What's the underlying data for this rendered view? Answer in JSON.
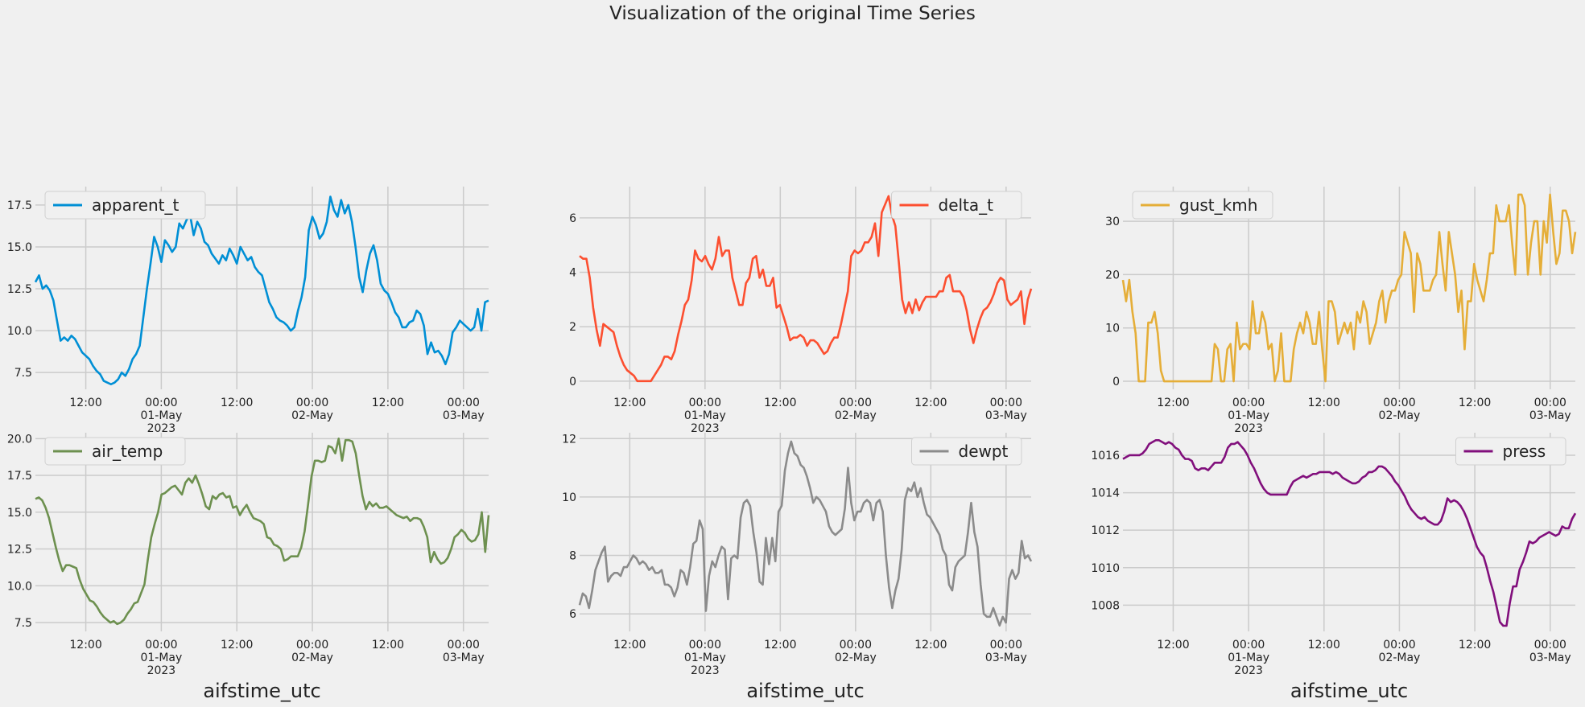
{
  "figure": {
    "title": "Visualization of the original Time Series",
    "xlabel": "aifstime_utc"
  },
  "chart_data": [
    {
      "type": "line",
      "series": [
        {
          "name": "apparent_t",
          "color": "#008fd5",
          "values": [
            12.9,
            13.3,
            12.5,
            12.7,
            12.4,
            11.8,
            10.6,
            9.4,
            9.6,
            9.4,
            9.7,
            9.5,
            9.1,
            8.7,
            8.5,
            8.3,
            7.9,
            7.6,
            7.4,
            7.0,
            6.9,
            6.8,
            6.9,
            7.1,
            7.5,
            7.3,
            7.7,
            8.3,
            8.6,
            9.1,
            10.8,
            12.5,
            14.0,
            15.6,
            15.0,
            14.1,
            15.4,
            15.1,
            14.7,
            15.0,
            16.4,
            16.1,
            16.6,
            16.9,
            15.7,
            16.5,
            16.1,
            15.3,
            15.1,
            14.6,
            14.3,
            14.0,
            14.5,
            14.2,
            14.9,
            14.5,
            14.0,
            15.0,
            14.6,
            14.2,
            14.4,
            13.8,
            13.5,
            13.3,
            12.5,
            11.7,
            11.3,
            10.8,
            10.6,
            10.5,
            10.3,
            10.0,
            10.2,
            11.2,
            12.0,
            13.2,
            16.0,
            16.8,
            16.3,
            15.5,
            15.8,
            16.5,
            18.0,
            17.2,
            16.8,
            17.8,
            17.0,
            17.5,
            16.5,
            15.0,
            13.2,
            12.3,
            13.6,
            14.6,
            15.1,
            14.2,
            12.8,
            12.4,
            12.2,
            11.7,
            11.1,
            10.8,
            10.2,
            10.2,
            10.5,
            10.6,
            11.2,
            11.0,
            10.3,
            8.6,
            9.3,
            8.7,
            8.8,
            8.5,
            8.0,
            8.6,
            9.9,
            10.2,
            10.6,
            10.4,
            10.2,
            10.0,
            10.2,
            11.3,
            10.0,
            11.7,
            11.8
          ]
        }
      ],
      "x_range": [
        "2023-04-30 04:00",
        "2023-05-03 04:00"
      ],
      "x_ticks": [
        "12:00",
        "00:00\n01-May\n2023",
        "12:00",
        "00:00\n02-May",
        "12:00",
        "00:00\n03-May"
      ],
      "show_x_ticks": true,
      "ylim": [
        6.5,
        18.6
      ],
      "y_ticks": [
        "7.5",
        "10.0",
        "12.5",
        "15.0",
        "17.5"
      ],
      "legend_position": "upper left",
      "grid": true
    },
    {
      "type": "line",
      "series": [
        {
          "name": "delta_t",
          "color": "#fc4f30",
          "values": [
            4.6,
            4.5,
            4.5,
            3.8,
            2.7,
            1.9,
            1.3,
            2.1,
            2.0,
            1.9,
            1.8,
            1.3,
            0.9,
            0.6,
            0.4,
            0.3,
            0.2,
            0.0,
            0.0,
            0.0,
            0.0,
            0.0,
            0.2,
            0.4,
            0.6,
            0.9,
            0.9,
            0.8,
            1.1,
            1.7,
            2.2,
            2.8,
            3.0,
            3.7,
            4.8,
            4.5,
            4.4,
            4.6,
            4.3,
            4.1,
            4.5,
            5.3,
            4.6,
            4.8,
            4.8,
            3.8,
            3.3,
            2.8,
            2.8,
            3.6,
            3.8,
            4.5,
            4.6,
            3.8,
            4.1,
            3.5,
            3.5,
            3.8,
            2.7,
            2.8,
            2.4,
            2.0,
            1.5,
            1.6,
            1.6,
            1.7,
            1.6,
            1.3,
            1.5,
            1.5,
            1.4,
            1.2,
            1.0,
            1.1,
            1.4,
            1.6,
            1.6,
            2.1,
            2.7,
            3.3,
            4.6,
            4.8,
            4.7,
            4.8,
            5.1,
            5.1,
            5.3,
            5.8,
            4.6,
            6.2,
            6.5,
            6.8,
            6.1,
            5.7,
            4.4,
            3.0,
            2.5,
            2.9,
            2.5,
            3.0,
            2.6,
            2.9,
            3.1,
            3.1,
            3.1,
            3.1,
            3.3,
            3.3,
            3.8,
            3.9,
            3.3,
            3.3,
            3.3,
            3.1,
            2.6,
            1.9,
            1.4,
            1.9,
            2.3,
            2.6,
            2.7,
            2.9,
            3.2,
            3.6,
            3.8,
            3.7,
            3.0,
            2.8,
            2.9,
            3.0,
            3.3,
            2.1,
            3.0,
            3.4
          ]
        }
      ],
      "x_range": [
        "2023-04-30 04:00",
        "2023-05-03 04:00"
      ],
      "x_ticks": [
        "12:00",
        "00:00\n01-May\n2023",
        "12:00",
        "00:00\n02-May",
        "12:00",
        "00:00\n03-May"
      ],
      "show_x_ticks": true,
      "ylim": [
        -0.3,
        7.15
      ],
      "y_ticks": [
        "0",
        "2",
        "4",
        "6"
      ],
      "legend_position": "upper right",
      "grid": true
    },
    {
      "type": "line",
      "series": [
        {
          "name": "gust_kmh",
          "color": "#e5ae38",
          "values": [
            19,
            15,
            19,
            13,
            9,
            0,
            0,
            0,
            11,
            11,
            13,
            9,
            2,
            0,
            0,
            0,
            0,
            0,
            0,
            0,
            0,
            0,
            0,
            0,
            0,
            0,
            0,
            0,
            0,
            7,
            6,
            0,
            0,
            6,
            7,
            0,
            11,
            6,
            7,
            7,
            6,
            15,
            9,
            9,
            13,
            11,
            6,
            7,
            0,
            2,
            9,
            0,
            0,
            0,
            6,
            9,
            11,
            9,
            13,
            11,
            7,
            7,
            13,
            6,
            0,
            15,
            15,
            13,
            7,
            9,
            11,
            9,
            11,
            6,
            13,
            11,
            15,
            13,
            7,
            9,
            11,
            15,
            17,
            11,
            15,
            17,
            17,
            19,
            20,
            28,
            26,
            24,
            13,
            24,
            22,
            17,
            17,
            17,
            19,
            20,
            28,
            22,
            17,
            28,
            24,
            20,
            13,
            17,
            6,
            15,
            15,
            22,
            19,
            17,
            15,
            19,
            24,
            24,
            33,
            30,
            30,
            30,
            33,
            26,
            20,
            35,
            35,
            33,
            20,
            26,
            30,
            30,
            20,
            30,
            26,
            35,
            28,
            22,
            24,
            32,
            32,
            30,
            24,
            28
          ]
        }
      ],
      "x_range": [
        "2023-04-30 04:00",
        "2023-05-03 04:00"
      ],
      "x_ticks": [
        "12:00",
        "00:00\n01-May\n2023",
        "12:00",
        "00:00\n02-May",
        "12:00",
        "00:00\n03-May"
      ],
      "show_x_ticks": true,
      "ylim": [
        -1.5,
        36.5
      ],
      "y_ticks": [
        "0",
        "10",
        "20",
        "30"
      ],
      "legend_position": "upper left",
      "grid": true
    },
    {
      "type": "line",
      "series": [
        {
          "name": "air_temp",
          "color": "#6d904f",
          "values": [
            15.9,
            16.0,
            15.8,
            15.3,
            14.6,
            13.6,
            12.6,
            11.7,
            11.0,
            11.4,
            11.4,
            11.3,
            11.2,
            10.4,
            9.8,
            9.4,
            9.0,
            8.9,
            8.6,
            8.2,
            7.9,
            7.7,
            7.5,
            7.6,
            7.4,
            7.5,
            7.7,
            8.1,
            8.4,
            8.8,
            8.9,
            9.5,
            10.1,
            11.8,
            13.3,
            14.2,
            15.0,
            16.2,
            16.3,
            16.5,
            16.7,
            16.8,
            16.5,
            16.2,
            17.0,
            17.3,
            17.0,
            17.5,
            16.9,
            16.2,
            15.4,
            15.2,
            16.1,
            15.9,
            16.2,
            16.3,
            16.0,
            16.1,
            15.3,
            15.4,
            14.8,
            15.2,
            15.5,
            15.0,
            14.6,
            14.5,
            14.4,
            14.2,
            13.3,
            13.2,
            12.8,
            12.7,
            12.5,
            11.7,
            11.8,
            12.0,
            12.0,
            12.0,
            12.6,
            13.7,
            15.5,
            17.4,
            18.5,
            18.5,
            18.4,
            18.5,
            19.5,
            19.4,
            19.0,
            20.0,
            18.5,
            19.9,
            19.9,
            19.8,
            19.0,
            17.5,
            16.1,
            15.2,
            15.7,
            15.4,
            15.6,
            15.3,
            15.3,
            15.4,
            15.2,
            15.0,
            14.8,
            14.7,
            14.6,
            14.7,
            14.4,
            14.6,
            14.6,
            14.5,
            14.0,
            13.3,
            11.6,
            12.3,
            11.8,
            11.5,
            11.6,
            11.9,
            12.5,
            13.3,
            13.5,
            13.8,
            13.6,
            13.2,
            13.0,
            13.1,
            13.5,
            15.0,
            12.3,
            14.8
          ]
        }
      ],
      "x_range": [
        "2023-04-30 04:00",
        "2023-05-03 04:00"
      ],
      "x_ticks": [
        "12:00",
        "00:00\n01-May\n2023",
        "12:00",
        "00:00\n02-May",
        "12:00",
        "00:00\n03-May"
      ],
      "show_x_ticks": true,
      "ylim": [
        6.9,
        20.4
      ],
      "y_ticks": [
        "7.5",
        "10.0",
        "12.5",
        "15.0",
        "17.5",
        "20.0"
      ],
      "legend_position": "upper left",
      "grid": true
    },
    {
      "type": "line",
      "series": [
        {
          "name": "dewpt",
          "color": "#8b8b8b",
          "values": [
            6.3,
            6.7,
            6.6,
            6.2,
            6.8,
            7.5,
            7.8,
            8.1,
            8.3,
            7.1,
            7.3,
            7.4,
            7.4,
            7.3,
            7.6,
            7.6,
            7.8,
            8.0,
            7.9,
            7.7,
            7.8,
            7.7,
            7.5,
            7.6,
            7.4,
            7.4,
            7.5,
            7.0,
            7.0,
            6.9,
            6.6,
            6.9,
            7.5,
            7.4,
            7.0,
            7.6,
            8.4,
            8.5,
            9.2,
            8.9,
            6.1,
            7.3,
            7.8,
            7.6,
            8.0,
            8.3,
            8.2,
            6.5,
            7.9,
            8.0,
            7.9,
            9.3,
            9.8,
            9.9,
            9.7,
            8.8,
            8.1,
            7.1,
            7.0,
            8.6,
            7.7,
            8.6,
            7.8,
            9.5,
            9.7,
            10.9,
            11.5,
            11.9,
            11.5,
            11.4,
            11.1,
            11.0,
            10.7,
            10.3,
            9.8,
            10.0,
            9.9,
            9.7,
            9.5,
            9.0,
            8.8,
            8.7,
            8.8,
            8.9,
            9.6,
            11.0,
            9.8,
            9.2,
            9.5,
            9.5,
            9.8,
            9.9,
            9.8,
            9.2,
            9.8,
            9.9,
            9.5,
            8.0,
            6.9,
            6.2,
            6.8,
            7.2,
            8.2,
            9.9,
            10.3,
            10.2,
            10.5,
            10.0,
            10.3,
            9.8,
            9.4,
            9.3,
            9.1,
            8.9,
            8.7,
            8.2,
            8.0,
            7.0,
            6.8,
            7.6,
            7.8,
            7.9,
            8.0,
            8.8,
            9.8,
            8.8,
            8.3,
            7.0,
            6.0,
            5.9,
            5.9,
            6.2,
            5.9,
            5.6,
            5.9,
            5.7,
            7.2,
            7.5,
            7.2,
            7.4,
            8.5,
            7.9,
            8.0,
            7.8
          ]
        }
      ],
      "x_range": [
        "2023-04-30 04:00",
        "2023-05-03 04:00"
      ],
      "x_ticks": [
        "12:00",
        "00:00\n01-May\n2023",
        "12:00",
        "00:00\n02-May",
        "12:00",
        "00:00\n03-May"
      ],
      "show_x_ticks": true,
      "ylim": [
        5.4,
        12.2
      ],
      "y_ticks": [
        "6",
        "8",
        "10",
        "12"
      ],
      "legend_position": "upper right",
      "grid": true
    },
    {
      "type": "line",
      "series": [
        {
          "name": "press",
          "color": "#810f7c",
          "values": [
            1015.8,
            1015.9,
            1016.0,
            1016.0,
            1016.0,
            1016.0,
            1016.1,
            1016.3,
            1016.6,
            1016.7,
            1016.8,
            1016.8,
            1016.7,
            1016.6,
            1016.7,
            1016.6,
            1016.4,
            1016.3,
            1016.0,
            1015.8,
            1015.8,
            1015.7,
            1015.3,
            1015.2,
            1015.3,
            1015.3,
            1015.2,
            1015.4,
            1015.6,
            1015.6,
            1015.6,
            1015.9,
            1016.4,
            1016.6,
            1016.6,
            1016.7,
            1016.5,
            1016.3,
            1016.0,
            1015.6,
            1015.3,
            1014.9,
            1014.5,
            1014.2,
            1014.0,
            1013.9,
            1013.9,
            1013.9,
            1013.9,
            1013.9,
            1013.9,
            1014.3,
            1014.6,
            1014.7,
            1014.8,
            1014.9,
            1014.8,
            1014.9,
            1015.0,
            1015.0,
            1015.1,
            1015.1,
            1015.1,
            1015.1,
            1015.0,
            1015.1,
            1015.0,
            1014.8,
            1014.7,
            1014.6,
            1014.5,
            1014.5,
            1014.6,
            1014.8,
            1014.9,
            1015.1,
            1015.1,
            1015.2,
            1015.4,
            1015.4,
            1015.3,
            1015.1,
            1014.9,
            1014.6,
            1014.4,
            1014.1,
            1013.8,
            1013.4,
            1013.1,
            1012.9,
            1012.7,
            1012.6,
            1012.7,
            1012.5,
            1012.4,
            1012.3,
            1012.3,
            1012.5,
            1013.0,
            1013.7,
            1013.5,
            1013.6,
            1013.5,
            1013.3,
            1013.0,
            1012.6,
            1012.1,
            1011.6,
            1011.1,
            1010.8,
            1010.6,
            1010.0,
            1009.3,
            1008.7,
            1007.9,
            1007.1,
            1006.9,
            1006.9,
            1008.1,
            1009.0,
            1009.0,
            1009.9,
            1010.3,
            1010.8,
            1011.4,
            1011.3,
            1011.4,
            1011.6,
            1011.7,
            1011.8,
            1011.9,
            1011.8,
            1011.7,
            1011.8,
            1012.2,
            1012.1,
            1012.1,
            1012.6,
            1012.9
          ]
        }
      ],
      "x_range": [
        "2023-04-30 04:00",
        "2023-05-03 04:00"
      ],
      "x_ticks": [
        "12:00",
        "00:00\n01-May\n2023",
        "12:00",
        "00:00\n02-May",
        "12:00",
        "00:00\n03-May"
      ],
      "show_x_ticks": true,
      "ylim": [
        1006.6,
        1017.2
      ],
      "y_ticks": [
        "1008",
        "1010",
        "1012",
        "1014",
        "1016"
      ],
      "legend_position": "upper right",
      "grid": true
    }
  ]
}
